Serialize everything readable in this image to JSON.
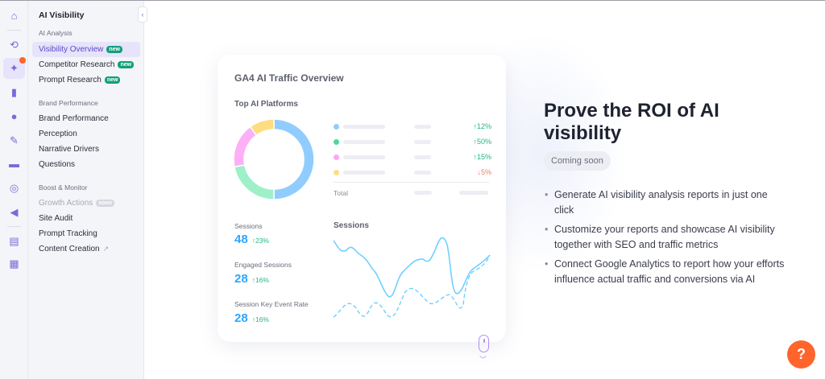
{
  "sidebar": {
    "title": "AI Visibility",
    "sections": [
      {
        "label": "AI Analysis"
      },
      {
        "label": "Brand Performance"
      },
      {
        "label": "Boost & Monitor"
      }
    ],
    "items": [
      {
        "label": "Visibility Overview",
        "badge": "new"
      },
      {
        "label": "Competitor Research",
        "badge": "new"
      },
      {
        "label": "Prompt Research",
        "badge": "new"
      },
      {
        "label": "Brand Performance"
      },
      {
        "label": "Perception"
      },
      {
        "label": "Narrative Drivers"
      },
      {
        "label": "Questions"
      },
      {
        "label": "Growth Actions",
        "badge": "soon"
      },
      {
        "label": "Site Audit"
      },
      {
        "label": "Prompt Tracking"
      },
      {
        "label": "Content Creation"
      }
    ]
  },
  "card": {
    "title": "GA4 AI Traffic Overview",
    "platforms_title": "Top AI Platforms",
    "legend": [
      {
        "color": "#90cdfe",
        "change": "↑12%",
        "dir": "up"
      },
      {
        "color": "#4fd6a0",
        "change": "↑50%",
        "dir": "up"
      },
      {
        "color": "#fca6f5",
        "change": "↑15%",
        "dir": "up"
      },
      {
        "color": "#fedc80",
        "change": "↓5%",
        "dir": "down"
      }
    ],
    "total_label": "Total",
    "metrics": [
      {
        "label": "Sessions",
        "value": "48",
        "change": "↑23%"
      },
      {
        "label": "Engaged Sessions",
        "value": "28",
        "change": "↑16%"
      },
      {
        "label": "Session Key Event Rate",
        "value": "28",
        "change": "↑16%"
      }
    ],
    "sessions_title": "Sessions",
    "donut_shares": [
      0.5,
      0.22,
      0.18,
      0.1
    ]
  },
  "promo": {
    "title": "Prove the ROI of AI visibility",
    "badge": "Coming soon",
    "bullets": [
      "Generate AI visibility analysis reports in just one click",
      "Customize your reports and showcase AI visibility together with SEO and traffic metrics",
      "Connect Google Analytics to report how your efforts influence actual traffic and conversions via AI"
    ]
  },
  "help": {
    "label": "?"
  },
  "colors": {
    "accent": "#7a6ad8",
    "help": "#ff642d",
    "new_badge": "#139f7a"
  }
}
